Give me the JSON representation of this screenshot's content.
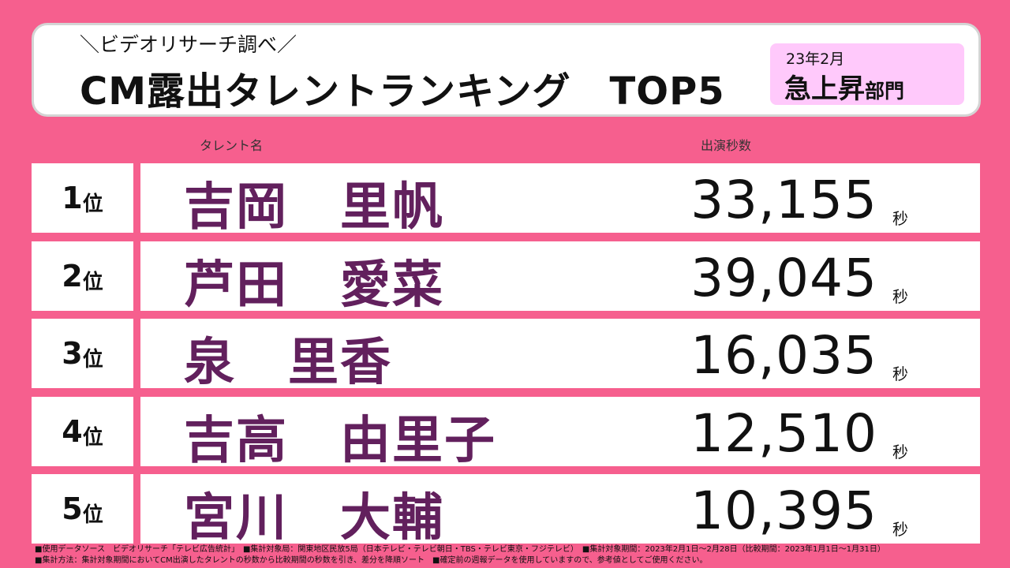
{
  "header": {
    "subtitle": "＼ビデオリサーチ調べ／",
    "title": "CM露出タレントランキング　TOP5",
    "badge_date": "23年2月",
    "badge_main": "急上昇",
    "badge_suffix": "部門"
  },
  "columns": {
    "name_label": "タレント名",
    "value_label": "出演秒数"
  },
  "rank_suffix": "位",
  "unit": "秒",
  "rows": [
    {
      "rank": "1",
      "name": "吉岡　里帆",
      "value": "33,155"
    },
    {
      "rank": "2",
      "name": "芦田　愛菜",
      "value": "39,045"
    },
    {
      "rank": "3",
      "name": "泉　里香",
      "value": "16,035"
    },
    {
      "rank": "4",
      "name": "吉高　由里子",
      "value": "12,510"
    },
    {
      "rank": "5",
      "name": "宮川　大輔",
      "value": "10,395"
    }
  ],
  "footer": {
    "line1": "■使用データソース　ビデオリサーチ「テレビ広告統計」　■集計対象局：関東地区民放5局（日本テレビ・テレビ朝日・TBS・テレビ東京・フジテレビ）　■集計対象期間：2023年2月1日～2月28日（比較期間：2023年1月1日～1月31日）",
    "line2": "■集計方法：集計対象期間においてCM出演したタレントの秒数から比較期間の秒数を引き、差分を降順ソート　■確定前の週報データを使用していますので、参考値としてご使用ください。"
  }
}
